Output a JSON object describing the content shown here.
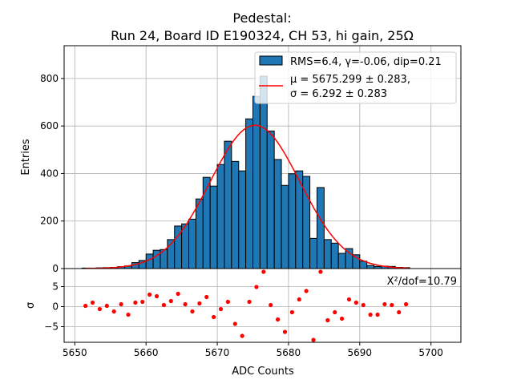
{
  "chart_data": {
    "type": "bar",
    "title_line1": "Pedestal:",
    "title_line2": "Run 24, Board ID E190324, CH 53, hi gain, 25Ω",
    "xlabel": "ADC Counts",
    "ylabel": "Entries",
    "residual_ylabel": "σ",
    "xlim": [
      5648.5,
      5704.2
    ],
    "ylim": [
      0,
      938
    ],
    "residual_ylim": [
      -8.9,
      9.5
    ],
    "xticks": [
      5650,
      5660,
      5670,
      5680,
      5690,
      5700
    ],
    "yticks": [
      0,
      200,
      400,
      600,
      800
    ],
    "residual_yticks": [
      -5,
      0,
      5
    ],
    "grid": true,
    "bin_width": 1,
    "bin_edges_start": 5651,
    "values": [
      2,
      2,
      3,
      4,
      5,
      8,
      11,
      25,
      34,
      61,
      77,
      80,
      122,
      179,
      188,
      208,
      293,
      384,
      347,
      438,
      536,
      451,
      411,
      630,
      725,
      810,
      579,
      459,
      350,
      399,
      411,
      388,
      127,
      341,
      122,
      107,
      64,
      84,
      58,
      31,
      13,
      9,
      10,
      9,
      5,
      4
    ],
    "fit": {
      "mu": 5675.299,
      "sigma": 6.292,
      "amplitude": 603,
      "x_range": [
        5651.5,
        5697
      ]
    },
    "residuals": [
      0.2,
      1.0,
      -0.6,
      0.2,
      -1.2,
      0.6,
      -2.0,
      1.0,
      1.2,
      3.0,
      2.6,
      0.4,
      1.4,
      3.2,
      0.6,
      -1.2,
      0.8,
      2.4,
      -2.6,
      -0.6,
      1.2,
      -4.3,
      -7.3,
      1.2,
      4.9,
      8.7,
      0.4,
      -3.2,
      -6.3,
      -1.4,
      1.8,
      3.9,
      -8.3,
      8.7,
      -3.4,
      -1.4,
      -3.0,
      1.8,
      1.0,
      0.4,
      -2.0,
      -2.0,
      0.6,
      0.4,
      -1.4,
      0.6
    ],
    "legend": {
      "placement": "top-right",
      "hist_label": "RMS=6.4, γ=-0.06, dip=0.21",
      "fit_label_line1": "μ = 5675.299 ± 0.283,",
      "fit_label_line2": "σ = 6.292 ± 0.283"
    },
    "annotation": "X²/dof=10.79",
    "colors": {
      "bar": "#1f77b4",
      "fit": "#ff0000",
      "residual": "#ff0000",
      "grid": "#b0b0b0"
    }
  }
}
